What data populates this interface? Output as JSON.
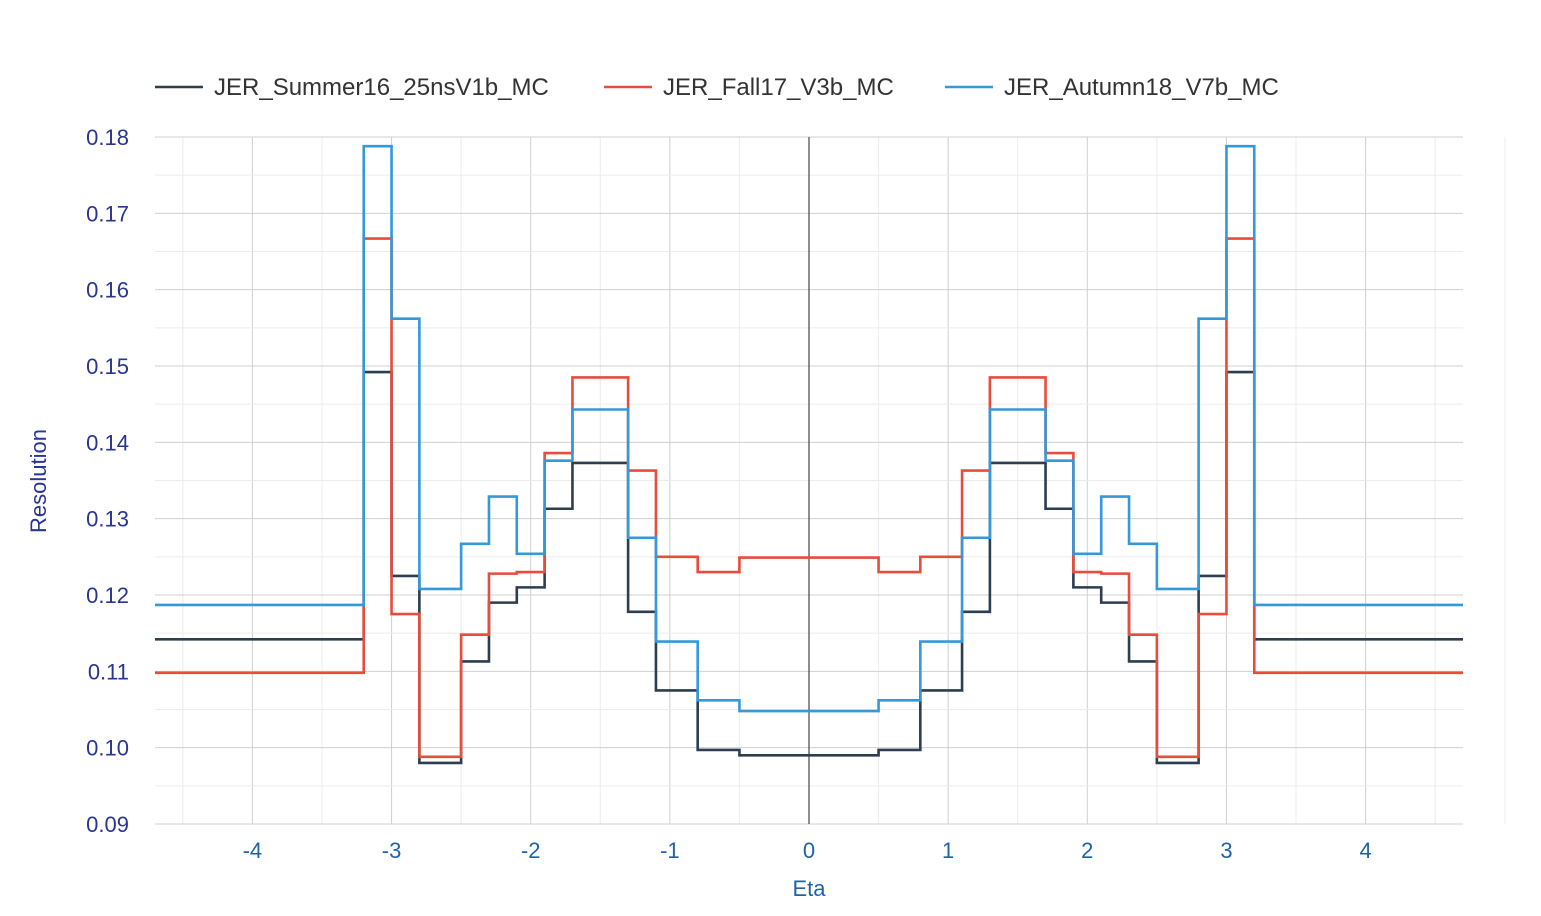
{
  "chart_data": {
    "type": "line",
    "step": true,
    "title": "",
    "xlabel": "Eta",
    "ylabel": "Resolution",
    "xlim": [
      -4.7,
      4.7
    ],
    "ylim": [
      0.09,
      0.18
    ],
    "x_ticks": [
      -4,
      -3,
      -2,
      -1,
      0,
      1,
      2,
      3,
      4
    ],
    "x_tick_labels": [
      "-4",
      "-3",
      "-2",
      "-1",
      "0",
      "1",
      "2",
      "3",
      "4"
    ],
    "y_ticks": [
      0.09,
      0.1,
      0.11,
      0.12,
      0.13,
      0.14,
      0.15,
      0.16,
      0.17,
      0.18
    ],
    "y_tick_labels": [
      "0.09",
      "0.10",
      "0.11",
      "0.12",
      "0.13",
      "0.14",
      "0.15",
      "0.16",
      "0.17",
      "0.18"
    ],
    "grid": true,
    "legend_position": "top",
    "bin_edges": [
      -4.7,
      -3.2,
      -3.0,
      -2.8,
      -2.5,
      -2.3,
      -2.1,
      -1.9,
      -1.7,
      -1.3,
      -1.1,
      -0.8,
      -0.5,
      0.5,
      0.8,
      1.1,
      1.3,
      1.7,
      1.9,
      2.1,
      2.3,
      2.5,
      2.8,
      3.0,
      3.2,
      4.7
    ],
    "series": [
      {
        "name": "JER_Summer16_25nsV1b_MC",
        "color": "#2c3e50",
        "values": [
          0.1142,
          0.1492,
          0.1225,
          0.098,
          0.1113,
          0.119,
          0.121,
          0.1313,
          0.1373,
          0.1178,
          0.1075,
          0.0997,
          0.099,
          0.0997,
          0.1075,
          0.1178,
          0.1373,
          0.1313,
          0.121,
          0.119,
          0.1113,
          0.098,
          0.1225,
          0.1492,
          0.1142
        ]
      },
      {
        "name": "JER_Fall17_V3b_MC",
        "color": "#e74c3c",
        "values": [
          0.1098,
          0.1667,
          0.1175,
          0.0988,
          0.1148,
          0.1228,
          0.123,
          0.1386,
          0.1485,
          0.1363,
          0.125,
          0.123,
          0.1249,
          0.123,
          0.125,
          0.1363,
          0.1485,
          0.1386,
          0.123,
          0.1228,
          0.1148,
          0.0988,
          0.1175,
          0.1667,
          0.1098
        ]
      },
      {
        "name": "JER_Autumn18_V7b_MC",
        "color": "#3498db",
        "values": [
          0.1187,
          0.1788,
          0.1562,
          0.1208,
          0.1267,
          0.1329,
          0.1254,
          0.1376,
          0.1443,
          0.1275,
          0.1139,
          0.1062,
          0.1048,
          0.1062,
          0.1139,
          0.1275,
          0.1443,
          0.1376,
          0.1254,
          0.1329,
          0.1267,
          0.1208,
          0.1562,
          0.1788,
          0.1187
        ]
      }
    ]
  }
}
